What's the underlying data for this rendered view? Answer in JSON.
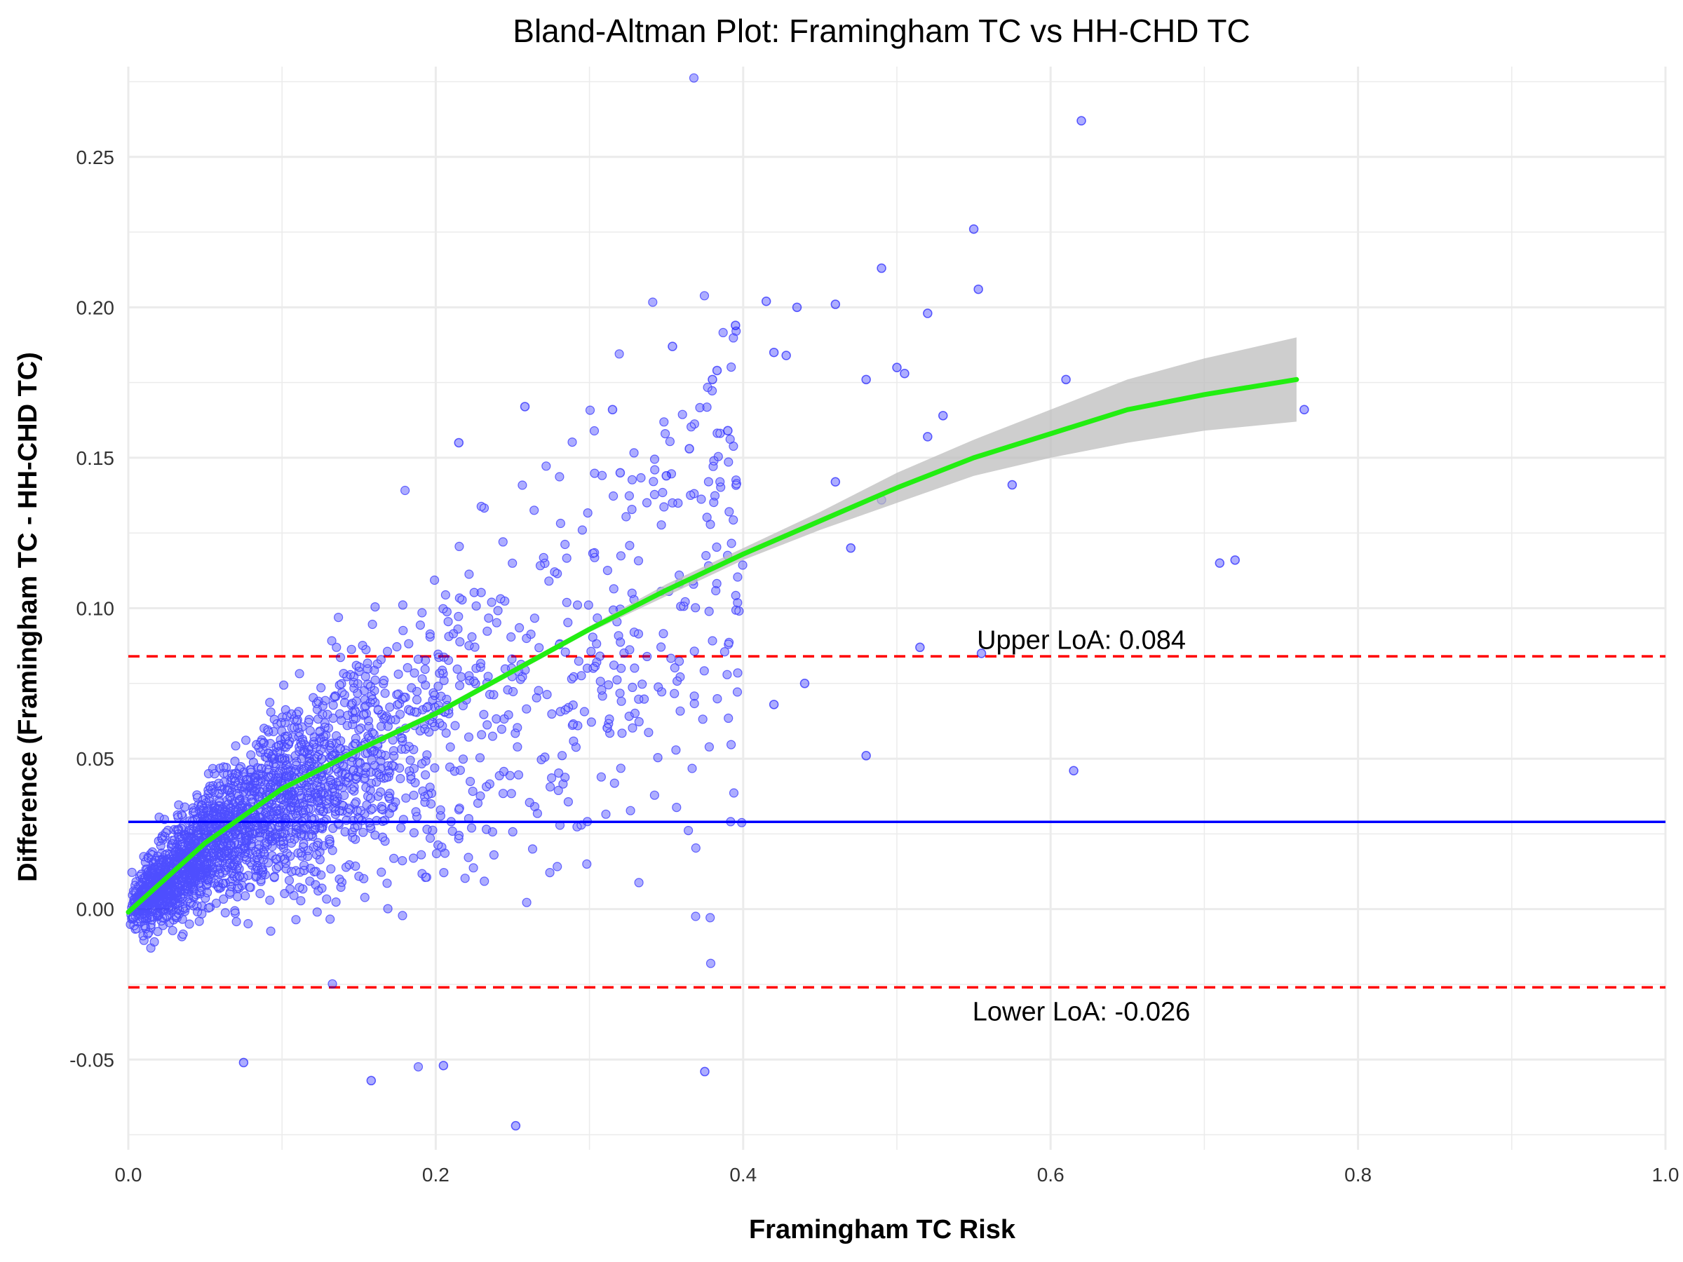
{
  "chart_data": {
    "type": "scatter",
    "title": "Bland-Altman Plot: Framingham TC vs HH-CHD TC",
    "xlabel": "Framingham TC Risk",
    "ylabel": "Difference (Framingham TC - HH-CHD TC)",
    "xlim": [
      0.0,
      1.0
    ],
    "ylim": [
      -0.08,
      0.28
    ],
    "x_ticks": [
      0.0,
      0.2,
      0.4,
      0.6,
      0.8,
      1.0
    ],
    "x_tick_labels": [
      "0.0",
      "0.2",
      "0.4",
      "0.6",
      "0.8",
      "1.0"
    ],
    "y_ticks": [
      -0.05,
      0.0,
      0.05,
      0.1,
      0.15,
      0.2,
      0.25
    ],
    "y_tick_labels": [
      "-0.05",
      "0.00",
      "0.05",
      "0.10",
      "0.15",
      "0.20",
      "0.25"
    ],
    "grid": true,
    "legend": "none",
    "colors": {
      "points": "#0000ff",
      "mean_line": "#0000ff",
      "loa_lines": "#ff0000",
      "smooth_line": "#22ee11",
      "confidence_band": "#bdbdbd",
      "grid": "#ebebeb"
    },
    "mean_difference": 0.029,
    "upper_loa": 0.084,
    "lower_loa": -0.026,
    "annotations": [
      {
        "text": "Upper LoA: 0.084",
        "x": 0.62,
        "y": 0.0895
      },
      {
        "text": "Lower LoA: -0.026",
        "x": 0.62,
        "y": -0.034
      }
    ],
    "smooth": {
      "x": [
        0.0,
        0.05,
        0.1,
        0.15,
        0.2,
        0.25,
        0.3,
        0.35,
        0.4,
        0.45,
        0.5,
        0.55,
        0.6,
        0.65,
        0.7,
        0.76
      ],
      "y": [
        -0.001,
        0.022,
        0.04,
        0.053,
        0.065,
        0.079,
        0.093,
        0.106,
        0.118,
        0.129,
        0.14,
        0.15,
        0.158,
        0.166,
        0.171,
        0.176
      ],
      "lower": [
        -0.002,
        0.021,
        0.039,
        0.052,
        0.064,
        0.078,
        0.092,
        0.104,
        0.116,
        0.126,
        0.135,
        0.144,
        0.15,
        0.155,
        0.159,
        0.162
      ],
      "upper": [
        0.0,
        0.023,
        0.041,
        0.054,
        0.066,
        0.08,
        0.094,
        0.108,
        0.12,
        0.132,
        0.145,
        0.156,
        0.166,
        0.176,
        0.183,
        0.19
      ]
    },
    "outlier_points": {
      "x": [
        0.62,
        0.55,
        0.49,
        0.553,
        0.415,
        0.435,
        0.46,
        0.52,
        0.395,
        0.42,
        0.428,
        0.354,
        0.5,
        0.505,
        0.61,
        0.765,
        0.53,
        0.52,
        0.575,
        0.48,
        0.383,
        0.38,
        0.258,
        0.215,
        0.315,
        0.71,
        0.72,
        0.515,
        0.555,
        0.615,
        0.48,
        0.252,
        0.375,
        0.205,
        0.158,
        0.075,
        0.42,
        0.35,
        0.32,
        0.365,
        0.39,
        0.46,
        0.49,
        0.44,
        0.47
      ],
      "y": [
        0.262,
        0.226,
        0.213,
        0.206,
        0.202,
        0.2,
        0.201,
        0.198,
        0.194,
        0.185,
        0.184,
        0.187,
        0.18,
        0.178,
        0.176,
        0.166,
        0.164,
        0.157,
        0.141,
        0.176,
        0.179,
        0.176,
        0.167,
        0.155,
        0.166,
        0.115,
        0.116,
        0.087,
        0.085,
        0.046,
        0.051,
        -0.072,
        -0.054,
        -0.052,
        -0.057,
        -0.051,
        0.068,
        0.144,
        0.145,
        0.153,
        0.159,
        0.142,
        0.136,
        0.075,
        0.12
      ]
    },
    "bulk_points_description": "approximately 6000 additional points densely clustered along the smooth curve for x between 0.0 and 0.4"
  }
}
